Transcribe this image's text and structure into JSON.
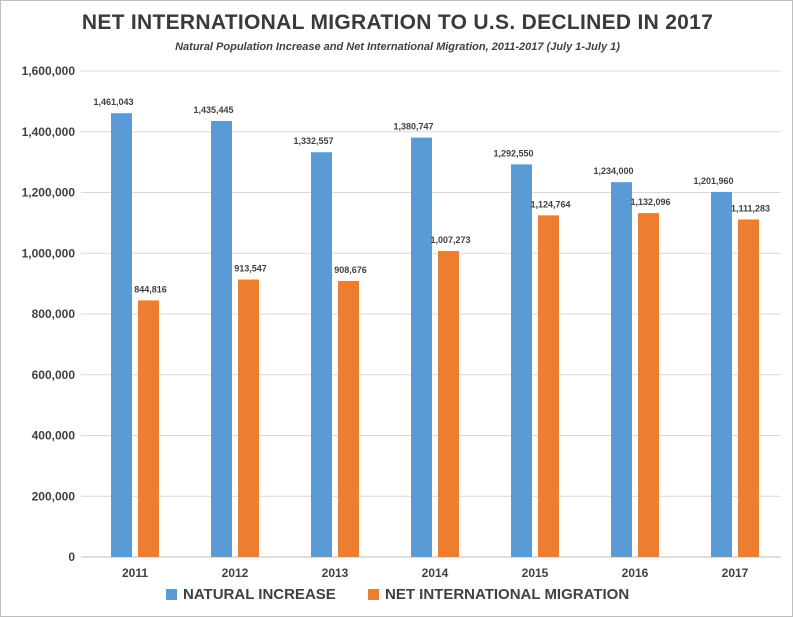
{
  "chart_data": {
    "type": "bar",
    "title": "NET INTERNATIONAL MIGRATION TO U.S. DECLINED IN 2017",
    "subtitle": "Natural Population Increase and Net International Migration, 2011-2017 (July 1-July 1)",
    "xlabel": "",
    "ylabel": "",
    "categories": [
      "2011",
      "2012",
      "2013",
      "2014",
      "2015",
      "2016",
      "2017"
    ],
    "series": [
      {
        "name": "NATURAL INCREASE",
        "color": "#5b9bd5",
        "values": [
          1461043,
          1435445,
          1332557,
          1380747,
          1292550,
          1234000,
          1201960
        ],
        "labels": [
          "1,461,043",
          "1,435,445",
          "1,332,557",
          "1,380,747",
          "1,292,550",
          "1,234,000",
          "1,201,960"
        ]
      },
      {
        "name": "NET INTERNATIONAL MIGRATION",
        "color": "#ed7d31",
        "values": [
          844816,
          913547,
          908676,
          1007273,
          1124764,
          1132096,
          1111283
        ],
        "labels": [
          "844,816",
          "913,547",
          "908,676",
          "1,007,273",
          "1,124,764",
          "1,132,096",
          "1,111,283"
        ]
      }
    ],
    "ylim": [
      0,
      1600000
    ],
    "yticks": [
      0,
      200000,
      400000,
      600000,
      800000,
      1000000,
      1200000,
      1400000,
      1600000
    ],
    "ytick_labels": [
      "0",
      "200,000",
      "400,000",
      "600,000",
      "800,000",
      "1,000,000",
      "1,200,000",
      "1,400,000",
      "1,600,000"
    ],
    "grid": true,
    "legend_position": "bottom"
  }
}
